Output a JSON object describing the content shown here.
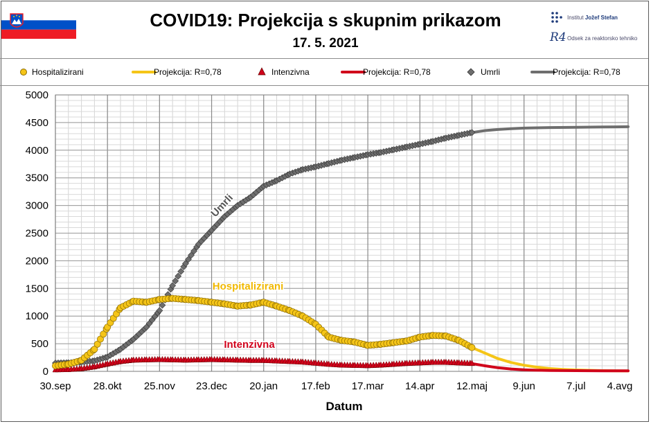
{
  "header": {
    "title": "COVID19: Projekcija s skupnim prikazom",
    "date": "17. 5. 2021",
    "logo_text_1": "Institut",
    "logo_text_1b": "Jožef Stefan",
    "logo_text_2": "Odsek za reaktorsko tehniko",
    "logo_mark_2": "R4"
  },
  "colors": {
    "hosp": "#f5c518",
    "hosp_edge": "#8a6a00",
    "icu": "#d0021b",
    "icu_edge": "#6a0000",
    "deaths": "#6e6e6e",
    "deaths_edge": "#333333",
    "flag_white": "#ffffff",
    "flag_blue": "#0050c8",
    "flag_red": "#ee1c25"
  },
  "chart_data": {
    "type": "line",
    "xlabel": "Datum",
    "ylabel": "",
    "ylim": [
      0,
      5000
    ],
    "yticks": [
      "0",
      "500",
      "1000",
      "1500",
      "2000",
      "2500",
      "3000",
      "3500",
      "4000",
      "4500",
      "5000"
    ],
    "x_tick_labels": [
      "30.sep",
      "28.okt",
      "25.nov",
      "23.dec",
      "20.jan",
      "17.feb",
      "17.mar",
      "14.apr",
      "12.maj",
      "9.jun",
      "7.jul",
      "4.avg"
    ],
    "x_tick_days": [
      0,
      28,
      56,
      84,
      112,
      140,
      168,
      196,
      224,
      252,
      280,
      308
    ],
    "grid": true,
    "legend_position": "top",
    "legend": [
      {
        "label": "Hospitalizirani",
        "marker": "circle"
      },
      {
        "label": "Projekcija: R=0,78",
        "marker": "line"
      },
      {
        "label": "Intenzivna",
        "marker": "triangle"
      },
      {
        "label": "Projekcija: R=0,78",
        "marker": "line"
      },
      {
        "label": "Umrli",
        "marker": "diamond"
      },
      {
        "label": "Projekcija: R=0,78",
        "marker": "line"
      }
    ],
    "annotations": {
      "umrli": "Umrli",
      "hosp": "Hospitalizirani",
      "icu": "Intenzivna"
    },
    "series": [
      {
        "name": "Hospitalizirani",
        "kind": "observed",
        "points": [
          [
            0,
            100
          ],
          [
            7,
            130
          ],
          [
            14,
            200
          ],
          [
            21,
            400
          ],
          [
            28,
            800
          ],
          [
            35,
            1150
          ],
          [
            42,
            1270
          ],
          [
            49,
            1250
          ],
          [
            56,
            1300
          ],
          [
            63,
            1320
          ],
          [
            70,
            1300
          ],
          [
            77,
            1280
          ],
          [
            84,
            1250
          ],
          [
            91,
            1220
          ],
          [
            98,
            1180
          ],
          [
            105,
            1200
          ],
          [
            112,
            1250
          ],
          [
            119,
            1180
          ],
          [
            126,
            1100
          ],
          [
            133,
            1000
          ],
          [
            140,
            850
          ],
          [
            147,
            620
          ],
          [
            154,
            560
          ],
          [
            161,
            530
          ],
          [
            168,
            470
          ],
          [
            175,
            490
          ],
          [
            182,
            520
          ],
          [
            189,
            550
          ],
          [
            196,
            620
          ],
          [
            203,
            650
          ],
          [
            210,
            640
          ],
          [
            217,
            560
          ],
          [
            224,
            430
          ]
        ]
      },
      {
        "name": "Projekcija: R=0,78",
        "kind": "hosp_projection",
        "points": [
          [
            224,
            430
          ],
          [
            231,
            330
          ],
          [
            238,
            230
          ],
          [
            245,
            160
          ],
          [
            252,
            110
          ],
          [
            259,
            75
          ],
          [
            266,
            50
          ],
          [
            273,
            35
          ],
          [
            280,
            25
          ],
          [
            294,
            12
          ],
          [
            308,
            8
          ]
        ]
      },
      {
        "name": "Intenzivna",
        "kind": "observed",
        "points": [
          [
            0,
            25
          ],
          [
            7,
            30
          ],
          [
            14,
            45
          ],
          [
            21,
            80
          ],
          [
            28,
            130
          ],
          [
            35,
            175
          ],
          [
            42,
            200
          ],
          [
            49,
            205
          ],
          [
            56,
            210
          ],
          [
            63,
            205
          ],
          [
            70,
            200
          ],
          [
            77,
            205
          ],
          [
            84,
            210
          ],
          [
            91,
            205
          ],
          [
            98,
            200
          ],
          [
            105,
            195
          ],
          [
            112,
            195
          ],
          [
            119,
            185
          ],
          [
            126,
            175
          ],
          [
            133,
            165
          ],
          [
            140,
            145
          ],
          [
            147,
            125
          ],
          [
            154,
            110
          ],
          [
            161,
            105
          ],
          [
            168,
            100
          ],
          [
            175,
            110
          ],
          [
            182,
            125
          ],
          [
            189,
            140
          ],
          [
            196,
            150
          ],
          [
            203,
            160
          ],
          [
            210,
            160
          ],
          [
            217,
            150
          ],
          [
            224,
            140
          ]
        ]
      },
      {
        "name": "Projekcija: R=0,78",
        "kind": "icu_projection",
        "points": [
          [
            224,
            140
          ],
          [
            231,
            100
          ],
          [
            238,
            65
          ],
          [
            245,
            42
          ],
          [
            252,
            28
          ],
          [
            259,
            20
          ],
          [
            266,
            15
          ],
          [
            280,
            12
          ],
          [
            294,
            10
          ],
          [
            308,
            10
          ]
        ]
      },
      {
        "name": "Umrli",
        "kind": "observed",
        "points": [
          [
            0,
            150
          ],
          [
            7,
            155
          ],
          [
            14,
            165
          ],
          [
            21,
            190
          ],
          [
            28,
            260
          ],
          [
            35,
            400
          ],
          [
            42,
            580
          ],
          [
            49,
            800
          ],
          [
            56,
            1100
          ],
          [
            63,
            1550
          ],
          [
            70,
            1950
          ],
          [
            77,
            2300
          ],
          [
            84,
            2550
          ],
          [
            91,
            2800
          ],
          [
            98,
            3000
          ],
          [
            105,
            3150
          ],
          [
            112,
            3350
          ],
          [
            119,
            3450
          ],
          [
            126,
            3570
          ],
          [
            133,
            3650
          ],
          [
            140,
            3700
          ],
          [
            147,
            3760
          ],
          [
            154,
            3820
          ],
          [
            161,
            3870
          ],
          [
            168,
            3920
          ],
          [
            175,
            3960
          ],
          [
            182,
            4010
          ],
          [
            189,
            4060
          ],
          [
            196,
            4110
          ],
          [
            203,
            4160
          ],
          [
            210,
            4220
          ],
          [
            217,
            4270
          ],
          [
            224,
            4320
          ]
        ]
      },
      {
        "name": "Projekcija: R=0,78",
        "kind": "deaths_projection",
        "points": [
          [
            224,
            4320
          ],
          [
            231,
            4355
          ],
          [
            238,
            4375
          ],
          [
            245,
            4390
          ],
          [
            252,
            4400
          ],
          [
            266,
            4410
          ],
          [
            280,
            4415
          ],
          [
            294,
            4420
          ],
          [
            308,
            4425
          ]
        ]
      }
    ]
  }
}
